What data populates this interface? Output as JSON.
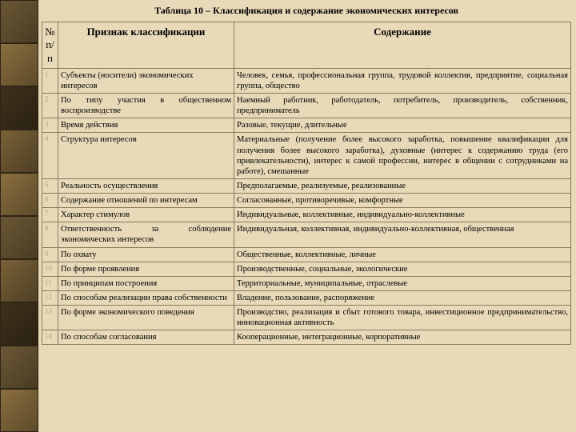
{
  "caption": "Таблица 10 – Классификация и содержание экономических интересов",
  "headers": {
    "num": "№ п/п",
    "criterion": "Признак классификации",
    "content": "Содержание"
  },
  "rows": [
    {
      "n": "1",
      "c": "Субъекты (носители) экономических интересов",
      "d": "Человек, семья, профессиональная группа, трудовой коллектив, предприятие, социальная группа, общество"
    },
    {
      "n": "2",
      "c": "По типу участия в общественном воспроизводстве",
      "d": "Наемный работник, работодатель, потребитель, производитель, собственник, предприниматель"
    },
    {
      "n": "3",
      "c": "Время действия",
      "d": "Разовые, текущие, длительные"
    },
    {
      "n": "4",
      "c": "Структура интересов",
      "d": "Материальные (получение более высокого заработка, повышение квалификации для получения более высокого заработка), духовные (интерес к содержанию труда (его привлекательности), интерес к самой профессии, интерес в общении с сотрудниками на работе), смешанные"
    },
    {
      "n": "5",
      "c": "Реальность осуществления",
      "d": "Предполагаемые, реализуемые, реализованные"
    },
    {
      "n": "6",
      "c": "Содержание отношений по интересам",
      "d": "Согласованные, противоречивые, комфортные"
    },
    {
      "n": "7",
      "c": "Характер стимулов",
      "d": "Индивидуальные, коллективные, индивидуально-коллективные"
    },
    {
      "n": "8",
      "c": "Ответственность за соблюдение экономических интересов",
      "d": "Индивидуальная, коллективная, индивидуально-коллективная, общественная"
    },
    {
      "n": "9",
      "c": "По охвату",
      "d": "Общественные, коллективные, личные"
    },
    {
      "n": "10",
      "c": "По форме проявления",
      "d": "Производственные, социальные, экологические"
    },
    {
      "n": "11",
      "c": "По принципам  построения",
      "d": "Территориальные, муниципальные, отраслевые"
    },
    {
      "n": "12",
      "c": "По способам реализации права собственности",
      "d": "Владение, пользование, распоряжение"
    },
    {
      "n": "13",
      "c": "По форме экономического поведения",
      "d": "Производство, реализация и сбыт готового товара, инвестиционное предпринимательство, инновационная активность"
    },
    {
      "n": "14",
      "c": "По способам согласования",
      "d": "Кооперационные, интеграционные, корпоративные"
    }
  ],
  "justifyCriterion": [
    1,
    5,
    7,
    11,
    12
  ],
  "justifyContent": [
    0,
    1,
    3,
    7,
    12
  ],
  "colors": {
    "bg": "#e8d9b8",
    "border": "#8a7a5a",
    "numText": "#b0a282"
  }
}
